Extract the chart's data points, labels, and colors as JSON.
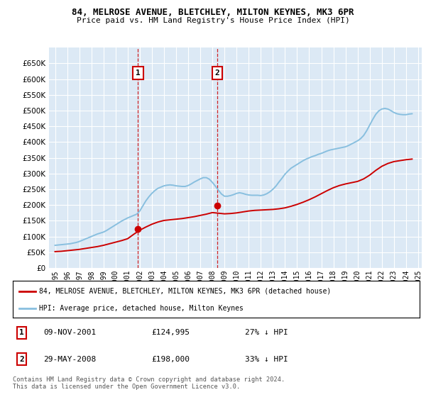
{
  "title": "84, MELROSE AVENUE, BLETCHLEY, MILTON KEYNES, MK3 6PR",
  "subtitle": "Price paid vs. HM Land Registry's House Price Index (HPI)",
  "ylim": [
    0,
    700000
  ],
  "yticks": [
    0,
    50000,
    100000,
    150000,
    200000,
    250000,
    300000,
    350000,
    400000,
    450000,
    500000,
    550000,
    600000,
    650000
  ],
  "xlim_start": 1994.5,
  "xlim_end": 2025.3,
  "bg_color": "#dce9f5",
  "grid_color": "#ffffff",
  "hpi_color": "#88bfdf",
  "price_color": "#cc0000",
  "transaction1_date": 2001.86,
  "transaction1_price": 124995,
  "transaction2_date": 2008.41,
  "transaction2_price": 198000,
  "legend_property": "84, MELROSE AVENUE, BLETCHLEY, MILTON KEYNES, MK3 6PR (detached house)",
  "legend_hpi": "HPI: Average price, detached house, Milton Keynes",
  "table_rows": [
    {
      "num": "1",
      "date": "09-NOV-2001",
      "price": "£124,995",
      "pct": "27% ↓ HPI"
    },
    {
      "num": "2",
      "date": "29-MAY-2008",
      "price": "£198,000",
      "pct": "33% ↓ HPI"
    }
  ],
  "footnote": "Contains HM Land Registry data © Crown copyright and database right 2024.\nThis data is licensed under the Open Government Licence v3.0.",
  "hpi_data_x": [
    1995.0,
    1995.25,
    1995.5,
    1995.75,
    1996.0,
    1996.25,
    1996.5,
    1996.75,
    1997.0,
    1997.25,
    1997.5,
    1997.75,
    1998.0,
    1998.25,
    1998.5,
    1998.75,
    1999.0,
    1999.25,
    1999.5,
    1999.75,
    2000.0,
    2000.25,
    2000.5,
    2000.75,
    2001.0,
    2001.25,
    2001.5,
    2001.75,
    2002.0,
    2002.25,
    2002.5,
    2002.75,
    2003.0,
    2003.25,
    2003.5,
    2003.75,
    2004.0,
    2004.25,
    2004.5,
    2004.75,
    2005.0,
    2005.25,
    2005.5,
    2005.75,
    2006.0,
    2006.25,
    2006.5,
    2006.75,
    2007.0,
    2007.25,
    2007.5,
    2007.75,
    2008.0,
    2008.25,
    2008.5,
    2008.75,
    2009.0,
    2009.25,
    2009.5,
    2009.75,
    2010.0,
    2010.25,
    2010.5,
    2010.75,
    2011.0,
    2011.25,
    2011.5,
    2011.75,
    2012.0,
    2012.25,
    2012.5,
    2012.75,
    2013.0,
    2013.25,
    2013.5,
    2013.75,
    2014.0,
    2014.25,
    2014.5,
    2014.75,
    2015.0,
    2015.25,
    2015.5,
    2015.75,
    2016.0,
    2016.25,
    2016.5,
    2016.75,
    2017.0,
    2017.25,
    2017.5,
    2017.75,
    2018.0,
    2018.25,
    2018.5,
    2018.75,
    2019.0,
    2019.25,
    2019.5,
    2019.75,
    2020.0,
    2020.25,
    2020.5,
    2020.75,
    2021.0,
    2021.25,
    2021.5,
    2021.75,
    2022.0,
    2022.25,
    2022.5,
    2022.75,
    2023.0,
    2023.25,
    2023.5,
    2023.75,
    2024.0,
    2024.25,
    2024.5
  ],
  "hpi_data_y": [
    72000,
    73000,
    74000,
    75000,
    76000,
    77000,
    79000,
    81000,
    84000,
    88000,
    92000,
    96000,
    100000,
    104000,
    108000,
    111000,
    114000,
    119000,
    125000,
    131000,
    137000,
    143000,
    149000,
    154000,
    159000,
    163000,
    167000,
    171000,
    181000,
    197000,
    213000,
    226000,
    237000,
    246000,
    253000,
    257000,
    261000,
    263000,
    264000,
    263000,
    261000,
    260000,
    259000,
    259000,
    262000,
    267000,
    273000,
    278000,
    283000,
    287000,
    287000,
    282000,
    272000,
    260000,
    247000,
    235000,
    228000,
    228000,
    230000,
    233000,
    237000,
    239000,
    237000,
    234000,
    232000,
    231000,
    231000,
    231000,
    230000,
    232000,
    236000,
    242000,
    250000,
    260000,
    273000,
    285000,
    298000,
    308000,
    317000,
    323000,
    329000,
    335000,
    341000,
    346000,
    350000,
    354000,
    357000,
    361000,
    364000,
    368000,
    372000,
    375000,
    377000,
    379000,
    381000,
    383000,
    385000,
    389000,
    394000,
    399000,
    404000,
    411000,
    421000,
    436000,
    454000,
    472000,
    488000,
    499000,
    505000,
    507000,
    505000,
    500000,
    494000,
    490000,
    488000,
    487000,
    487000,
    489000,
    490000
  ],
  "price_data_x": [
    1995.0,
    1995.5,
    1996.0,
    1996.5,
    1997.0,
    1997.5,
    1998.0,
    1998.5,
    1999.0,
    1999.5,
    2000.0,
    2000.5,
    2001.0,
    2001.5,
    2002.0,
    2002.5,
    2003.0,
    2003.5,
    2004.0,
    2004.5,
    2005.0,
    2005.5,
    2006.0,
    2006.5,
    2007.0,
    2007.5,
    2008.0,
    2008.5,
    2009.0,
    2009.5,
    2010.0,
    2010.5,
    2011.0,
    2011.5,
    2012.0,
    2012.5,
    2013.0,
    2013.5,
    2014.0,
    2014.5,
    2015.0,
    2015.5,
    2016.0,
    2016.5,
    2017.0,
    2017.5,
    2018.0,
    2018.5,
    2019.0,
    2019.5,
    2020.0,
    2020.5,
    2021.0,
    2021.5,
    2022.0,
    2022.5,
    2023.0,
    2023.5,
    2024.0,
    2024.5
  ],
  "price_data_y": [
    52000,
    53000,
    55000,
    57000,
    59000,
    62000,
    65000,
    68000,
    72000,
    77000,
    82000,
    87000,
    93000,
    107000,
    120000,
    130000,
    139000,
    146000,
    151000,
    153000,
    155000,
    157000,
    160000,
    163000,
    167000,
    171000,
    176000,
    174000,
    172000,
    173000,
    175000,
    178000,
    181000,
    183000,
    184000,
    185000,
    186000,
    188000,
    191000,
    196000,
    202000,
    209000,
    217000,
    226000,
    236000,
    246000,
    255000,
    262000,
    267000,
    271000,
    275000,
    283000,
    295000,
    310000,
    323000,
    332000,
    338000,
    341000,
    344000,
    346000
  ]
}
